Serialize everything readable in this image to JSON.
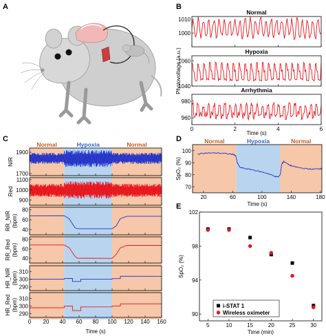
{
  "panel_letters": {
    "a": "A",
    "b": "B",
    "c": "C",
    "d": "D",
    "e": "E"
  },
  "colors": {
    "red": "#e8141b",
    "blue": "#2433c8",
    "normal_bg": "#f6c7a8",
    "hypoxia_bg": "#b9d4ee",
    "normal_label": "#c55a1c",
    "hypoxia_label": "#2a63c4",
    "black": "#000000"
  },
  "panel_a": {
    "illustration": "mouse-with-wireless-oximeter"
  },
  "chart_data": [
    {
      "id": "B",
      "type": "line",
      "ylabel": "Photovoltage (a.u.)",
      "xlabel": "Time (s)",
      "xlim": [
        0,
        6
      ],
      "x_ticks": [
        "0",
        "2",
        "4",
        "6"
      ],
      "subplots": [
        {
          "title": "Normal",
          "ylim": [
            990,
            1012
          ],
          "y_ticks": [
            1000,
            1010
          ],
          "series": [
            {
              "color": "#e8141b",
              "pattern": "irregular",
              "amplitude": [
                997,
                1010
              ],
              "cycles": 18
            }
          ]
        },
        {
          "title": "Hypoxia",
          "ylim": [
            1040,
            1064
          ],
          "y_ticks": [
            1040,
            1060
          ],
          "series": [
            {
              "color": "#e8141b",
              "pattern": "regular",
              "amplitude": [
                1045,
                1058
              ],
              "cycles": 22
            }
          ]
        },
        {
          "title": "Arrhythmia",
          "ylim": [
            952,
            988
          ],
          "y_ticks": [
            960,
            980
          ],
          "series": [
            {
              "color": "#e8141b",
              "pattern": "arrhythmic",
              "amplitude": [
                958,
                978
              ],
              "cycles": 24
            }
          ]
        }
      ]
    },
    {
      "id": "C",
      "type": "line",
      "xlabel": "Time (s)",
      "xlim": [
        0,
        160
      ],
      "x_ticks": [
        "0",
        "20",
        "40",
        "60",
        "80",
        "100",
        "120",
        "140",
        "160"
      ],
      "regions": [
        {
          "label": "Normal",
          "start": 0,
          "end": 42,
          "color": "#f6c7a8"
        },
        {
          "label": "Hypoxia",
          "start": 42,
          "end": 100,
          "color": "#b9d4ee"
        },
        {
          "label": "Normal",
          "start": 100,
          "end": 160,
          "color": "#f6c7a8"
        }
      ],
      "subplots": [
        {
          "ylabel": "NIR",
          "ylim": [
            1680,
            1940
          ],
          "y_ticks": [
            "1700",
            "1900"
          ],
          "color": "#2433c8",
          "kind": "oscillation",
          "envelope": {
            "normal": [
              1790,
              1895
            ],
            "hypoxia": [
              1760,
              1920
            ]
          }
        },
        {
          "ylabel": "Red",
          "ylim": [
            850,
            1120
          ],
          "y_ticks": [
            "900",
            "1000",
            "1100"
          ],
          "color": "#e8141b",
          "kind": "oscillation",
          "envelope": {
            "normal": [
              930,
              1060
            ],
            "hypoxia": [
              915,
              1085
            ]
          }
        },
        {
          "ylabel": "RR_NIR (bpm)",
          "ylim": [
            30,
            85
          ],
          "y_ticks": [
            "40",
            "60",
            "80"
          ],
          "color": "#2433c8",
          "kind": "step",
          "points": [
            [
              0,
              68
            ],
            [
              42,
              68
            ],
            [
              48,
              62
            ],
            [
              55,
              44
            ],
            [
              58,
              42
            ],
            [
              100,
              42
            ],
            [
              105,
              48
            ],
            [
              110,
              62
            ],
            [
              118,
              67
            ],
            [
              160,
              67
            ]
          ]
        },
        {
          "ylabel": "RR_Red (bpm)",
          "ylim": [
            30,
            85
          ],
          "y_ticks": [
            "40",
            "60",
            "80"
          ],
          "color": "#e8141b",
          "kind": "step",
          "points": [
            [
              0,
              68
            ],
            [
              42,
              68
            ],
            [
              48,
              62
            ],
            [
              55,
              44
            ],
            [
              58,
              40
            ],
            [
              100,
              40
            ],
            [
              105,
              48
            ],
            [
              110,
              62
            ],
            [
              118,
              67
            ],
            [
              160,
              67
            ]
          ]
        },
        {
          "ylabel": "HR_NIR (bpm)",
          "ylim": [
            285,
            318
          ],
          "y_ticks": [
            "290",
            "300",
            "310"
          ],
          "color": "#2433c8",
          "kind": "step",
          "points": [
            [
              0,
              300
            ],
            [
              42,
              300
            ],
            [
              42,
              301
            ],
            [
              52,
              301
            ],
            [
              52,
              297
            ],
            [
              62,
              297
            ],
            [
              62,
              300
            ],
            [
              100,
              300
            ],
            [
              100,
              301
            ],
            [
              110,
              301
            ],
            [
              110,
              304
            ],
            [
              160,
              304
            ]
          ]
        },
        {
          "ylabel": "HR_Red (bpm)",
          "ylim": [
            285,
            318
          ],
          "y_ticks": [
            "290",
            "300",
            "310"
          ],
          "color": "#e8141b",
          "kind": "step",
          "points": [
            [
              0,
              298
            ],
            [
              42,
              298
            ],
            [
              42,
              300
            ],
            [
              52,
              300
            ],
            [
              52,
              294
            ],
            [
              62,
              294
            ],
            [
              62,
              299
            ],
            [
              100,
              299
            ],
            [
              100,
              300
            ],
            [
              110,
              300
            ],
            [
              110,
              303
            ],
            [
              160,
              303
            ]
          ]
        }
      ]
    },
    {
      "id": "D",
      "type": "line",
      "ylabel": "SpO2 (%)",
      "xlabel": "Time (s)",
      "xlim": [
        5,
        182
      ],
      "ylim": [
        65,
        105
      ],
      "x_ticks": [
        "20",
        "60",
        "100",
        "140",
        "180"
      ],
      "y_ticks": [
        "70",
        "80",
        "90",
        "100"
      ],
      "regions": [
        {
          "label": "Normal",
          "start": 5,
          "end": 65,
          "color": "#f6c7a8"
        },
        {
          "label": "Hypoxia",
          "start": 65,
          "end": 125,
          "color": "#b9d4ee"
        },
        {
          "label": "Normal",
          "start": 125,
          "end": 182,
          "color": "#f6c7a8"
        }
      ],
      "series": [
        {
          "color": "#2433c8",
          "points": [
            [
              12,
              97
            ],
            [
              20,
              98
            ],
            [
              30,
              98
            ],
            [
              40,
              98
            ],
            [
              50,
              97.5
            ],
            [
              60,
              97
            ],
            [
              64,
              96
            ],
            [
              66,
              90
            ],
            [
              70,
              86
            ],
            [
              78,
              85
            ],
            [
              88,
              84
            ],
            [
              98,
              82.5
            ],
            [
              108,
              81
            ],
            [
              116,
              79
            ],
            [
              122,
              78
            ],
            [
              125,
              80
            ],
            [
              127,
              89
            ],
            [
              130,
              91
            ],
            [
              136,
              88.5
            ],
            [
              142,
              87
            ],
            [
              150,
              86
            ],
            [
              160,
              85
            ],
            [
              170,
              84.5
            ],
            [
              178,
              85
            ],
            [
              182,
              85
            ]
          ]
        }
      ]
    },
    {
      "id": "E",
      "type": "scatter",
      "ylabel": "SpO2 (%)",
      "xlabel": "Time (min)",
      "xlim": [
        3,
        32
      ],
      "ylim": [
        89.2,
        102
      ],
      "x_ticks": [
        "5",
        "10",
        "15",
        "20",
        "25",
        "30"
      ],
      "y_ticks": [
        "90",
        "94",
        "98",
        "102"
      ],
      "legend_position": "bottom-left",
      "series": [
        {
          "name": "i-STAT 1",
          "marker": "square",
          "color": "#000000",
          "points": [
            [
              5,
              100
            ],
            [
              10,
              100
            ],
            [
              15,
              99
            ],
            [
              20,
              97
            ],
            [
              25,
              96
            ],
            [
              30,
              91
            ]
          ]
        },
        {
          "name": "Wireless oximeter",
          "marker": "circle",
          "color": "#e8141b",
          "points": [
            [
              5,
              99.9
            ],
            [
              10,
              99.9
            ],
            [
              15,
              98
            ],
            [
              20,
              97.2
            ],
            [
              25,
              94.5
            ],
            [
              30,
              90.8
            ]
          ]
        }
      ]
    }
  ]
}
